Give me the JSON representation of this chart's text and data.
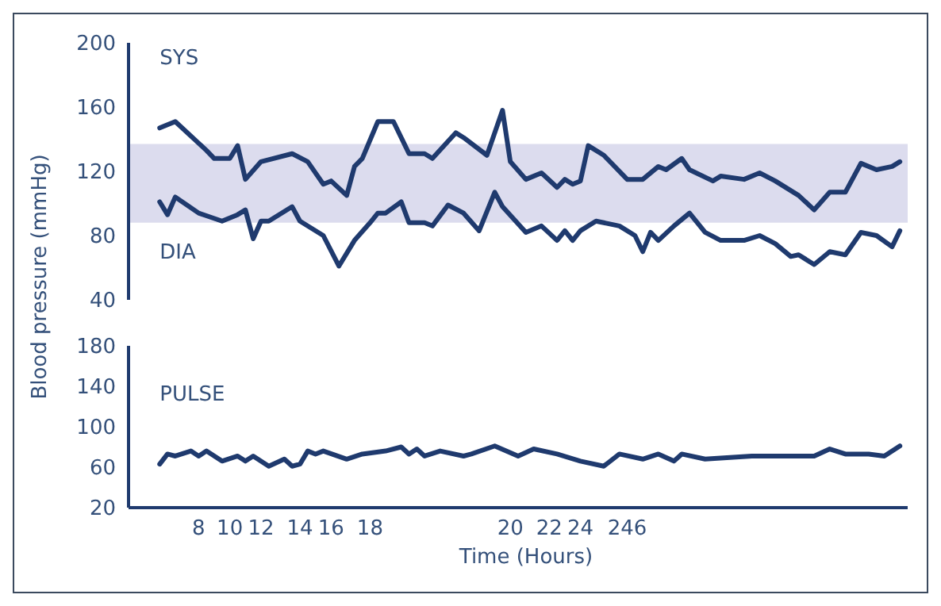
{
  "chart_data": [
    {
      "type": "line",
      "ylabel": "Blood pressure (mmHg)",
      "categories": [
        null,
        null,
        null,
        null,
        null,
        null,
        null,
        null,
        null,
        "8",
        null,
        null,
        null,
        "10",
        null,
        null,
        null,
        "12",
        null,
        null,
        null,
        null,
        "14",
        null,
        null,
        null,
        "16",
        null,
        null,
        null,
        null,
        "18",
        null,
        null,
        null,
        null,
        null,
        null,
        null,
        null,
        null,
        null,
        null,
        null,
        null,
        null,
        null,
        null,
        null,
        "20",
        null,
        null,
        null,
        null,
        "22",
        null,
        null,
        null,
        "24",
        null,
        null,
        null,
        null,
        null,
        "246",
        null,
        null,
        null,
        null,
        null,
        null,
        null,
        null,
        null,
        null,
        null,
        null,
        null,
        null,
        null,
        null,
        null,
        null,
        null,
        null,
        null,
        null,
        null,
        null,
        null,
        null,
        null,
        null,
        null,
        null,
        null,
        null,
        null,
        null,
        null,
        null
      ],
      "ylim": [
        40,
        200
      ],
      "yticks": [
        40,
        80,
        120,
        160,
        200
      ],
      "tick_labels": "y",
      "bands": [
        {
          "axis": "y",
          "from": 88,
          "to": 137,
          "color": "#dcdcee"
        }
      ],
      "series": [
        {
          "name": "SYS",
          "color": "#1f3a6e",
          "values": [
            null,
            null,
            null,
            null,
            147,
            null,
            151,
            null,
            null,
            null,
            133,
            128,
            null,
            128,
            136,
            115,
            null,
            126,
            null,
            null,
            null,
            131,
            null,
            126,
            null,
            112,
            114,
            null,
            105,
            123,
            128,
            null,
            151,
            null,
            151,
            null,
            131,
            null,
            131,
            128,
            null,
            null,
            144,
            141,
            null,
            null,
            130,
            null,
            158,
            126,
            null,
            115,
            null,
            119,
            null,
            110,
            115,
            112,
            114,
            136,
            null,
            130,
            null,
            null,
            115,
            null,
            115,
            null,
            123,
            121,
            null,
            128,
            121,
            null,
            null,
            114,
            117,
            null,
            null,
            115,
            null,
            119,
            null,
            114,
            null,
            null,
            105,
            null,
            96,
            null,
            107,
            null,
            107,
            null,
            125,
            null,
            121,
            null,
            123,
            126,
            null
          ]
        },
        {
          "name": "DIA",
          "color": "#1f3a6e",
          "values": [
            null,
            null,
            null,
            null,
            101,
            93,
            104,
            null,
            null,
            94,
            null,
            null,
            89,
            null,
            93,
            96,
            78,
            89,
            89,
            null,
            null,
            98,
            89,
            null,
            null,
            80,
            null,
            61,
            null,
            77,
            null,
            88,
            94,
            94,
            null,
            101,
            88,
            null,
            88,
            86,
            null,
            99,
            null,
            94,
            null,
            83,
            null,
            107,
            98,
            null,
            null,
            82,
            null,
            86,
            null,
            77,
            83,
            77,
            83,
            null,
            89,
            null,
            null,
            86,
            null,
            80,
            70,
            82,
            77,
            null,
            86,
            null,
            94,
            null,
            82,
            null,
            77,
            null,
            null,
            77,
            null,
            80,
            null,
            75,
            null,
            67,
            68,
            null,
            62,
            null,
            70,
            null,
            68,
            null,
            82,
            null,
            80,
            null,
            73,
            83,
            null
          ]
        }
      ]
    },
    {
      "type": "line",
      "xlabel": "Time (Hours)",
      "categories": [
        null,
        null,
        null,
        null,
        null,
        null,
        null,
        null,
        null,
        "8",
        null,
        null,
        null,
        "10",
        null,
        null,
        null,
        "12",
        null,
        null,
        null,
        null,
        "14",
        null,
        null,
        null,
        "16",
        null,
        null,
        null,
        null,
        "18",
        null,
        null,
        null,
        null,
        null,
        null,
        null,
        null,
        null,
        null,
        null,
        null,
        null,
        null,
        null,
        null,
        null,
        "20",
        null,
        null,
        null,
        null,
        "22",
        null,
        null,
        null,
        "24",
        null,
        null,
        null,
        null,
        null,
        "246",
        null,
        null,
        null,
        null,
        null,
        null,
        null,
        null,
        null,
        null,
        null,
        null,
        null,
        null,
        null,
        null,
        null,
        null,
        null,
        null,
        null,
        null,
        null,
        null,
        null,
        null,
        null,
        null,
        null,
        null,
        null,
        null,
        null,
        null,
        null,
        null
      ],
      "ylim": [
        20,
        180
      ],
      "yticks": [
        20,
        60,
        100,
        140,
        180
      ],
      "series": [
        {
          "name": "PULSE",
          "color": "#1f3a6e",
          "values": [
            null,
            null,
            null,
            null,
            63,
            73,
            71,
            null,
            76,
            71,
            76,
            null,
            66,
            null,
            71,
            66,
            71,
            null,
            61,
            null,
            68,
            61,
            63,
            76,
            73,
            76,
            null,
            null,
            68,
            null,
            73,
            null,
            null,
            76,
            null,
            80,
            73,
            78,
            71,
            null,
            76,
            null,
            null,
            71,
            73,
            null,
            null,
            81,
            null,
            null,
            71,
            null,
            78,
            null,
            null,
            73,
            null,
            null,
            66,
            null,
            null,
            61,
            null,
            73,
            null,
            null,
            68,
            null,
            73,
            null,
            66,
            73,
            null,
            null,
            68,
            null,
            null,
            null,
            null,
            null,
            71,
            null,
            null,
            null,
            null,
            null,
            null,
            null,
            71,
            null,
            78,
            null,
            73,
            null,
            null,
            73,
            null,
            71,
            null,
            81,
            null
          ]
        }
      ]
    }
  ]
}
